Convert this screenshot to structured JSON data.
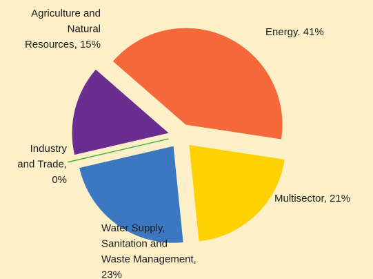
{
  "chart_data": {
    "type": "pie",
    "values": [
      41,
      21,
      23,
      0,
      15
    ],
    "value_labels": [
      [
        "Energy. 41%"
      ],
      [
        "Multisector, 21%"
      ],
      [
        "Water Supply,",
        "Sanitation and",
        "Waste Management,",
        "23%"
      ],
      [
        "Industry",
        "and Trade,",
        "0%"
      ],
      [
        "Agriculture and",
        "Natural",
        "Resources, 15%"
      ]
    ],
    "colors": [
      "#f4683a",
      "#ffd100",
      "#3b78c1",
      "#4caf3e",
      "#6a2e91"
    ]
  }
}
